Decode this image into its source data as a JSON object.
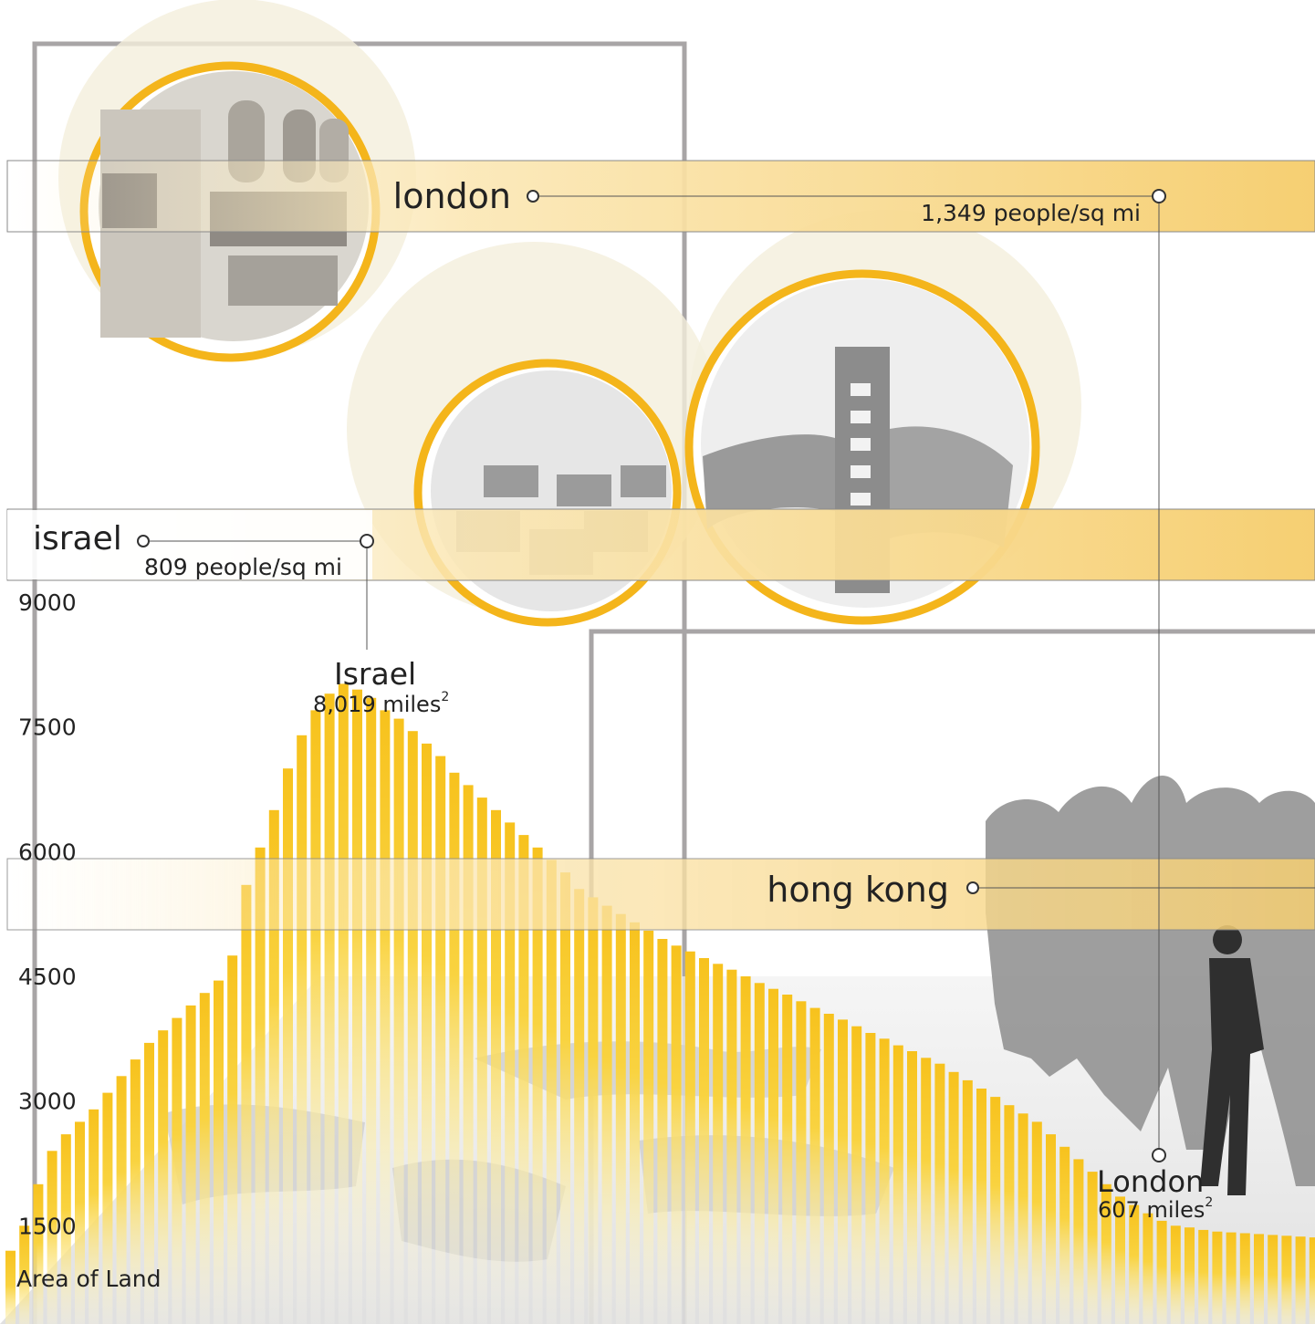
{
  "bands": [
    {
      "place": "london",
      "value_label": "1,349 people/sq mi"
    },
    {
      "place": "israel",
      "value_label": "809 people/sq mi"
    },
    {
      "place": "hong kong",
      "value_label": ""
    }
  ],
  "peaks": {
    "israel": {
      "name": "Israel",
      "area": "8,019 miles",
      "sup": "2"
    },
    "london": {
      "name": "London",
      "area": "607 miles",
      "sup": "2"
    }
  },
  "colors": {
    "accent": "#f4b51b",
    "bar": "#f7c21d",
    "frame": "#a8a5a6",
    "line": "#555555"
  },
  "chart_data": {
    "type": "bar",
    "ylabel": "Area of Land",
    "yticks": [
      "1500",
      "3000",
      "4500",
      "6000",
      "7500",
      "9000"
    ],
    "ylim": [
      0,
      9000
    ],
    "values": [
      1200,
      1500,
      2000,
      2400,
      2600,
      2750,
      2900,
      3100,
      3300,
      3500,
      3700,
      3850,
      4000,
      4150,
      4300,
      4450,
      4750,
      5600,
      6050,
      6500,
      7000,
      7400,
      7700,
      7900,
      8019,
      7950,
      7850,
      7700,
      7600,
      7450,
      7300,
      7150,
      6950,
      6800,
      6650,
      6500,
      6350,
      6200,
      6050,
      5900,
      5750,
      5550,
      5450,
      5350,
      5250,
      5150,
      5050,
      4950,
      4870,
      4800,
      4720,
      4650,
      4580,
      4500,
      4420,
      4350,
      4280,
      4200,
      4120,
      4050,
      3980,
      3900,
      3820,
      3750,
      3670,
      3600,
      3520,
      3450,
      3350,
      3250,
      3150,
      3050,
      2950,
      2850,
      2750,
      2600,
      2450,
      2300,
      2150,
      2000,
      1850,
      1750,
      1650,
      1560,
      1500,
      1480,
      1450,
      1430,
      1420,
      1410,
      1400,
      1390,
      1380,
      1370,
      1360
    ]
  }
}
